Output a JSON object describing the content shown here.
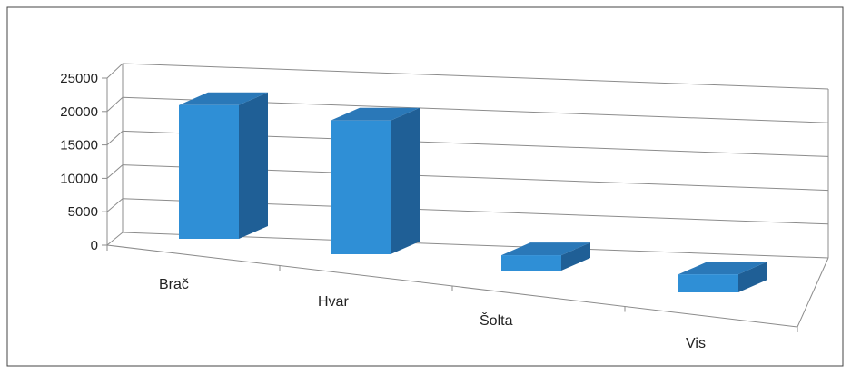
{
  "chart_data": {
    "type": "bar",
    "view": "3d-perspective",
    "categories": [
      "Brač",
      "Hvar",
      "Šolta",
      "Vis"
    ],
    "values": [
      20000,
      20000,
      2300,
      2700
    ],
    "y_ticks": [
      "0",
      "5000",
      "10000",
      "15000",
      "20000",
      "25000"
    ],
    "ylim": [
      0,
      25000
    ],
    "grid": true,
    "legend": "none",
    "colors": {
      "bar_front": "#2f8fd6",
      "bar_side": "#1f5f96",
      "bar_top": "#2a78b8",
      "axis": "#8c8c8c",
      "frame": "#444444"
    }
  }
}
